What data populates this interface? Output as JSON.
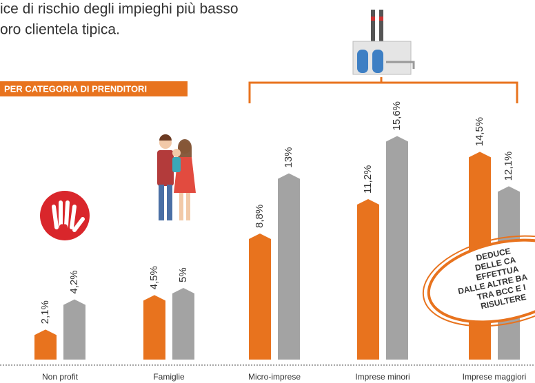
{
  "chart_data": {
    "type": "bar",
    "title_lines": [
      "ice di rischio degli impieghi più basso",
      "oro clientela tipica."
    ],
    "subtitle": "PER CATEGORIA DI PRENDITORI",
    "categories": [
      "Non profit",
      "Famiglie",
      "Micro-imprese",
      "Imprese minori",
      "Imprese maggiori"
    ],
    "series": [
      {
        "color": "#e8731e",
        "values": [
          2.1,
          4.5,
          8.8,
          11.2,
          14.5
        ],
        "value_labels": [
          "2,1%",
          "4,5%",
          "8,8%",
          "11,2%",
          "14,5%"
        ]
      },
      {
        "color": "#a3a3a3",
        "values": [
          4.2,
          5,
          13,
          15.6,
          12.1
        ],
        "value_labels": [
          "4,2%",
          "5%",
          "13%",
          "15,6%",
          "12,1%"
        ]
      }
    ],
    "annotation_lines": [
      "DEDUCE",
      "DELLE CA",
      "EFFETTUA",
      "DALLE ALTRE BA",
      "TRA BCC E I",
      "RISULTERE"
    ]
  }
}
